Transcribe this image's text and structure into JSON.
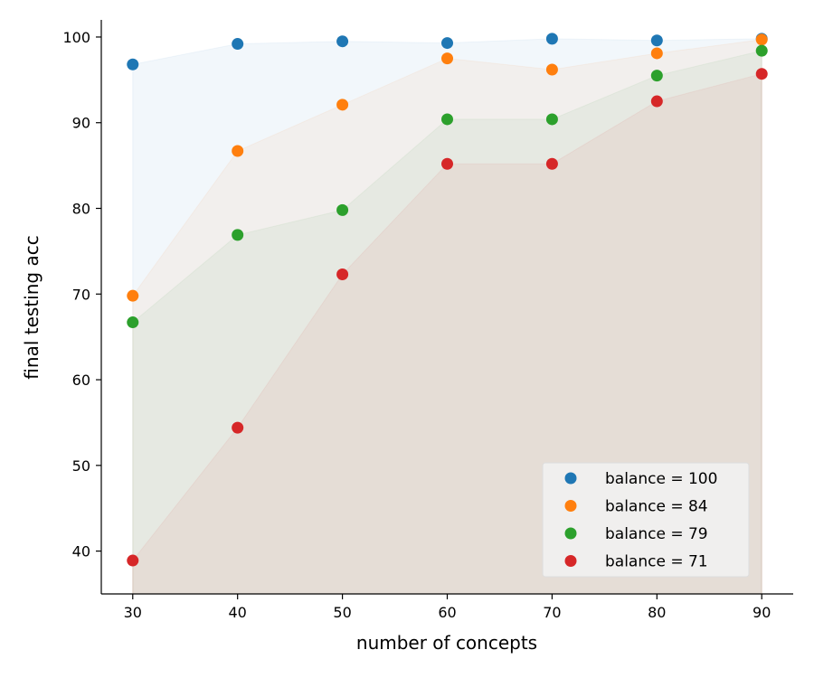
{
  "chart_data": {
    "type": "scatter",
    "xlabel": "number of concepts",
    "ylabel": "final testing acc",
    "x": [
      30,
      40,
      50,
      60,
      70,
      80,
      90
    ],
    "xlim": [
      27,
      93
    ],
    "ylim": [
      35,
      102
    ],
    "xticks": [
      30,
      40,
      50,
      60,
      70,
      80,
      90
    ],
    "yticks": [
      40,
      50,
      60,
      70,
      80,
      90,
      100
    ],
    "grid": false,
    "legend_position": "lower-right",
    "fill_under_series": true,
    "series": [
      {
        "name": "balance = 100",
        "color": "#1f77b4",
        "values": [
          96.8,
          99.2,
          99.5,
          99.3,
          99.8,
          99.6,
          99.8
        ]
      },
      {
        "name": "balance = 84",
        "color": "#ff7f0e",
        "values": [
          69.8,
          86.7,
          92.1,
          97.5,
          96.2,
          98.1,
          99.7
        ]
      },
      {
        "name": "balance = 79",
        "color": "#2ca02c",
        "values": [
          66.7,
          76.9,
          79.8,
          90.4,
          90.4,
          95.5,
          98.4
        ]
      },
      {
        "name": "balance = 71",
        "color": "#d62728",
        "values": [
          38.9,
          54.4,
          72.3,
          85.2,
          85.2,
          92.5,
          95.7
        ]
      }
    ]
  }
}
